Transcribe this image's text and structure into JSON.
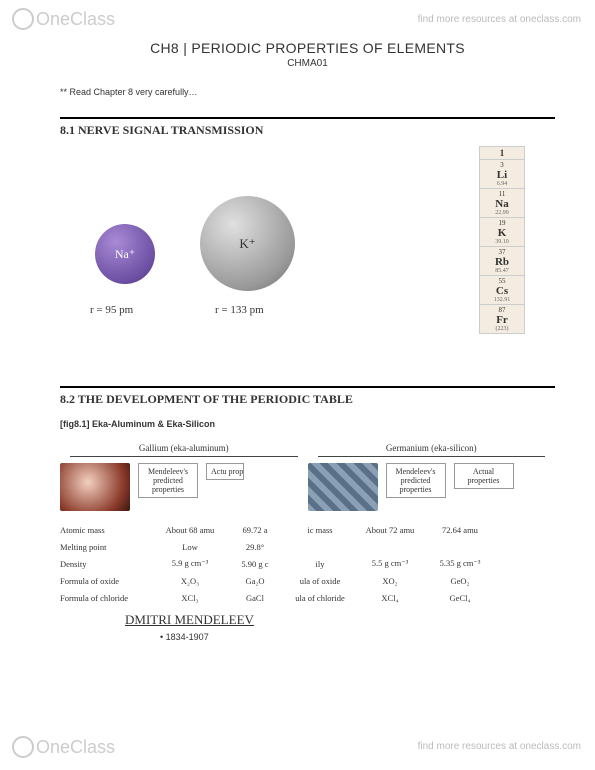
{
  "watermark": {
    "brand": "OneClass",
    "tagline": "find more resources at oneclass.com"
  },
  "header": {
    "title": "CH8 | PERIODIC PROPERTIES OF ELEMENTS",
    "course": "CHMA01",
    "note": "** Read Chapter 8 very carefully…"
  },
  "section81": {
    "heading": "8.1 NERVE SIGNAL TRANSMISSION",
    "na_label": "Na⁺",
    "k_label": "K⁺",
    "r_na": "r = 95 pm",
    "r_k": "r = 133 pm",
    "group_header": "1",
    "group": [
      {
        "num": "3",
        "sym": "Li",
        "mass": "6.94"
      },
      {
        "num": "11",
        "sym": "Na",
        "mass": "22.99"
      },
      {
        "num": "19",
        "sym": "K",
        "mass": "39.10"
      },
      {
        "num": "37",
        "sym": "Rb",
        "mass": "85.47"
      },
      {
        "num": "55",
        "sym": "Cs",
        "mass": "132.91"
      },
      {
        "num": "87",
        "sym": "Fr",
        "mass": "(223)"
      }
    ]
  },
  "section82": {
    "heading": "8.2 THE DEVELOPMENT OF THE PERIODIC TABLE",
    "fig_cap": "[fig8.1] Eka-Aluminum & Eka-Silicon",
    "ga_name": "Gallium (eka-aluminum)",
    "ge_name": "Germanium (eka-silicon)",
    "pred_box": "Mendeleev's predicted properties",
    "actual_box": "Actual properties",
    "actual_cut": "Actu proper",
    "rows": {
      "atomic_mass": {
        "lab": "Atomic mass",
        "ga_p": "About 68 amu",
        "ga_a": "69.72 a",
        "mid": "ic mass",
        "ge_p": "About 72 amu",
        "ge_a": "72.64 amu"
      },
      "melting_point": {
        "lab": "Melting point",
        "ga_p": "Low",
        "ga_a": "29.8°",
        "mid": "",
        "ge_p": "",
        "ge_a": ""
      },
      "density": {
        "lab": "Density",
        "ga_p": "5.9 g cm⁻³",
        "ga_a": "5.90 g c",
        "mid": "ily",
        "ge_p": "5.5 g cm⁻³",
        "ge_a": "5.35 g cm⁻³"
      },
      "oxide": {
        "lab": "Formula of oxide",
        "ga_p": "X₂O₃",
        "ga_a": "Ga₂O",
        "mid": "ula of oxide",
        "ge_p": "XO₂",
        "ge_a": "GeO₂"
      },
      "chloride": {
        "lab": "Formula of chloride",
        "ga_p": "XCl₃",
        "ga_a": "GaCl",
        "mid": "ula of chloride",
        "ge_p": "XCl₄",
        "ge_a": "GeCl₄"
      }
    },
    "mendeleev": "DMITRI MENDELEEV",
    "life": "1834-1907"
  }
}
